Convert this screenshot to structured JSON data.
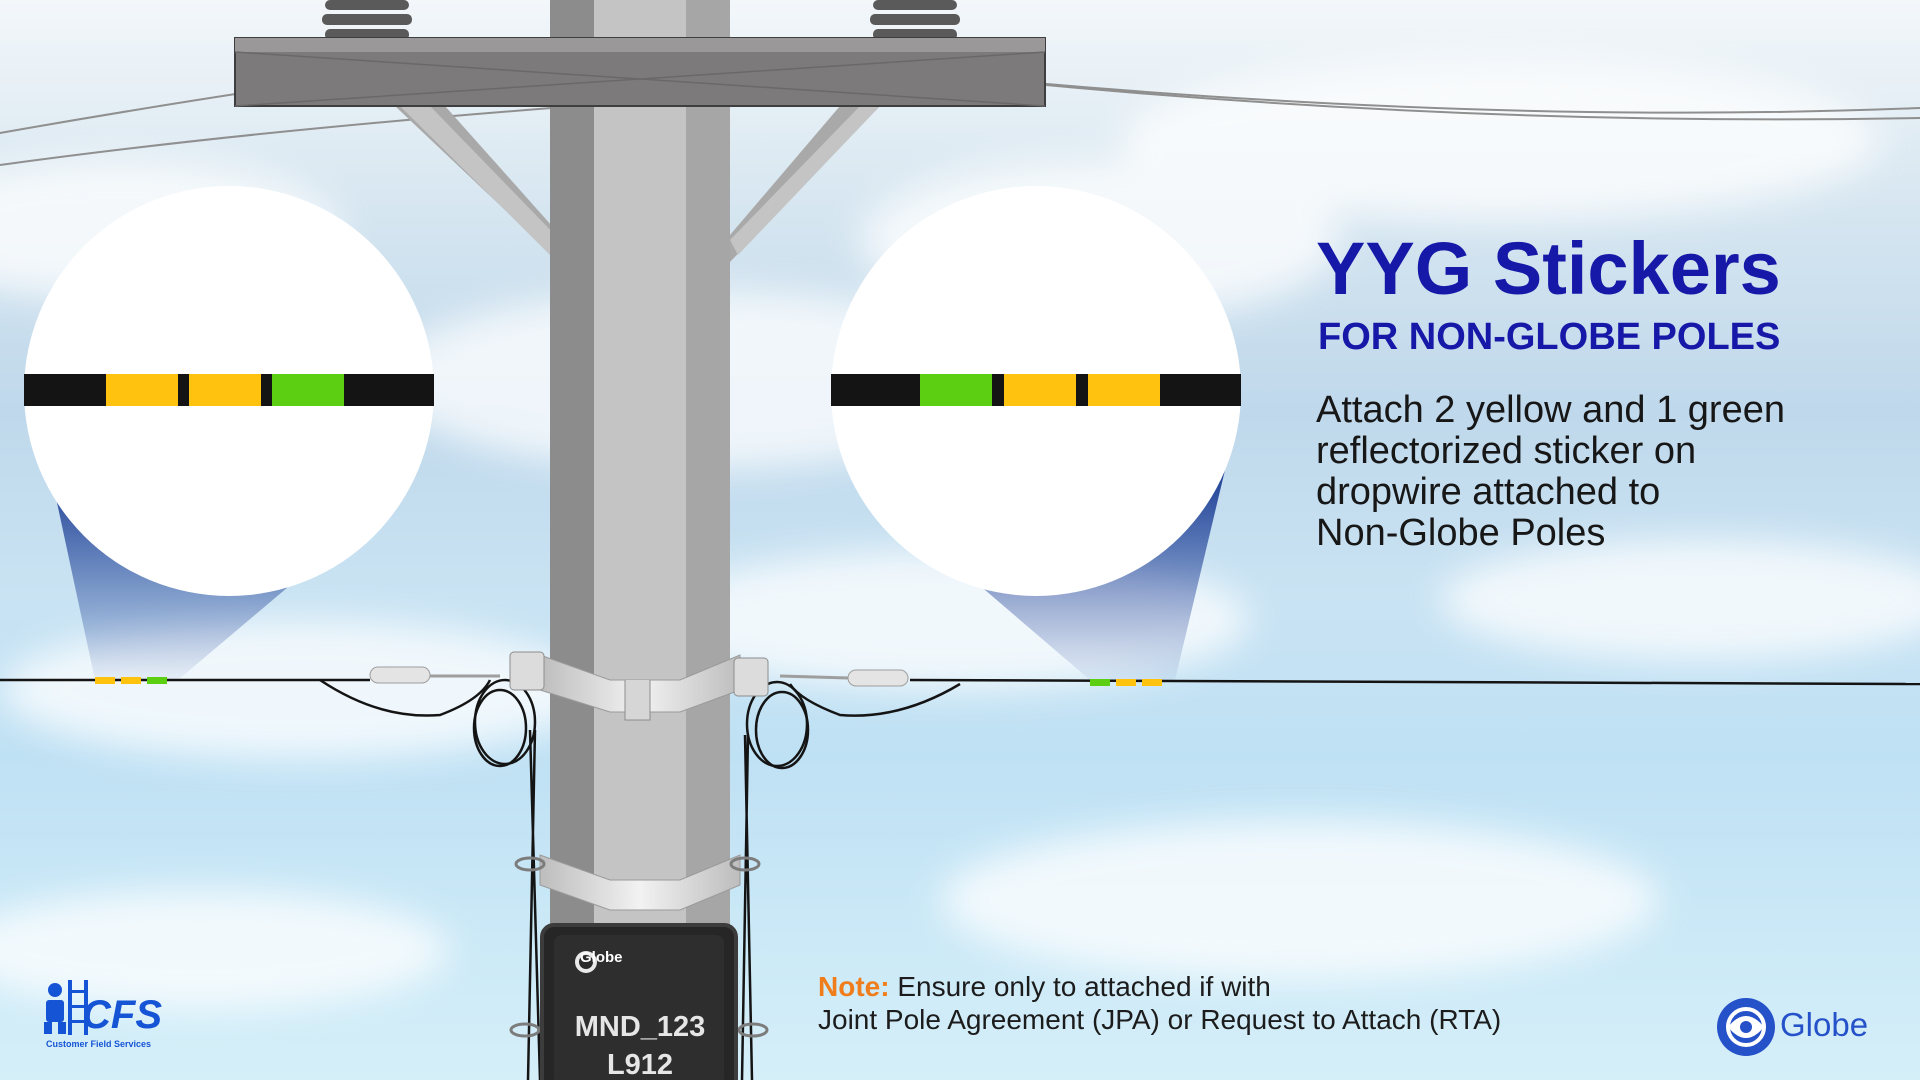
{
  "title": "YYG Stickers",
  "subtitle": "FOR NON-GLOBE POLES",
  "description_lines": [
    "Attach 2 yellow and 1 green",
    "reflectorized sticker on",
    "dropwire attached to",
    "Non-Globe Poles"
  ],
  "note": {
    "label": "Note:",
    "line1": " Ensure only to attached if with",
    "line2": "Joint Pole Agreement (JPA) or Request to Attach (RTA)"
  },
  "pole_box": {
    "brand": "Globe",
    "code_line1": "MND_123",
    "code_line2": "L912"
  },
  "logos": {
    "cfs_name": "CFS",
    "cfs_tagline": "Customer Field Services",
    "globe_name": "Globe",
    "cfs_icon": "worker-ladder-icon",
    "globe_icon": "globe-icon"
  },
  "stickers": {
    "left_sequence": [
      "yellow",
      "yellow",
      "green"
    ],
    "right_sequence": [
      "green",
      "yellow",
      "yellow"
    ]
  },
  "colors": {
    "title_blue": "#1619a8",
    "note_orange": "#f07d1b",
    "sticker_yellow": "#ffc20e",
    "sticker_green": "#5ccf12",
    "wire_black": "#141414",
    "zoom_blue": "#20479a",
    "logo_blue": "#1654d6"
  }
}
